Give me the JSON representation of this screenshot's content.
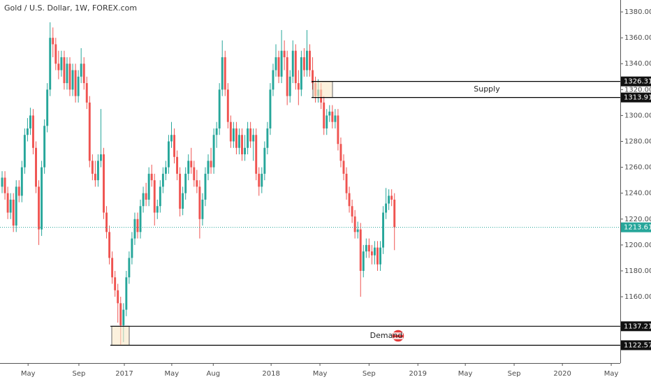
{
  "chart_data": {
    "type": "candlestick",
    "title": "Gold / U.S. Dollar, 1W, FOREX.com",
    "up_color": "#26a69a",
    "down_color": "#ef5350",
    "open": [
      1245,
      1252,
      1240,
      1225,
      1235,
      1215,
      1245,
      1238,
      1260,
      1285,
      1290,
      1300,
      1275,
      1245,
      1212,
      1260,
      1292,
      1320,
      1360,
      1355,
      1340,
      1335,
      1345,
      1325,
      1340,
      1320,
      1335,
      1315,
      1330,
      1340,
      1325,
      1310,
      1265,
      1255,
      1250,
      1265,
      1270,
      1225,
      1210,
      1190,
      1175,
      1165,
      1155,
      1138,
      1150,
      1175,
      1190,
      1205,
      1220,
      1210,
      1230,
      1240,
      1235,
      1255,
      1250,
      1225,
      1230,
      1245,
      1255,
      1260,
      1280,
      1285,
      1268,
      1255,
      1228,
      1240,
      1255,
      1265,
      1260,
      1250,
      1245,
      1220,
      1235,
      1255,
      1265,
      1260,
      1285,
      1290,
      1320,
      1345,
      1320,
      1295,
      1280,
      1290,
      1275,
      1285,
      1270,
      1275,
      1290,
      1280,
      1285,
      1255,
      1245,
      1255,
      1275,
      1290,
      1320,
      1335,
      1345,
      1330,
      1350,
      1345,
      1315,
      1330,
      1350,
      1325,
      1320,
      1345,
      1335,
      1350,
      1335,
      1325,
      1315,
      1320,
      1310,
      1290,
      1300,
      1303,
      1295,
      1300,
      1278,
      1265,
      1255,
      1240,
      1230,
      1222,
      1210,
      1212,
      1180,
      1195,
      1200,
      1195,
      1192,
      1198,
      1185,
      1198,
      1225,
      1232,
      1238,
      1235
    ],
    "high": [
      1257,
      1257,
      1245,
      1240,
      1240,
      1250,
      1250,
      1265,
      1290,
      1298,
      1306,
      1305,
      1280,
      1250,
      1265,
      1297,
      1325,
      1372,
      1368,
      1360,
      1350,
      1350,
      1350,
      1345,
      1345,
      1340,
      1340,
      1335,
      1352,
      1345,
      1330,
      1315,
      1270,
      1265,
      1270,
      1305,
      1275,
      1230,
      1215,
      1195,
      1180,
      1170,
      1160,
      1155,
      1180,
      1195,
      1210,
      1225,
      1225,
      1235,
      1245,
      1248,
      1260,
      1262,
      1255,
      1235,
      1250,
      1260,
      1265,
      1285,
      1295,
      1290,
      1273,
      1260,
      1245,
      1260,
      1270,
      1275,
      1265,
      1258,
      1250,
      1240,
      1260,
      1270,
      1275,
      1290,
      1295,
      1325,
      1358,
      1350,
      1325,
      1300,
      1295,
      1295,
      1290,
      1290,
      1285,
      1295,
      1295,
      1290,
      1290,
      1260,
      1260,
      1280,
      1295,
      1325,
      1340,
      1355,
      1350,
      1366,
      1358,
      1350,
      1335,
      1358,
      1355,
      1335,
      1350,
      1352,
      1366,
      1355,
      1345,
      1330,
      1328,
      1325,
      1315,
      1305,
      1308,
      1308,
      1305,
      1305,
      1283,
      1270,
      1260,
      1245,
      1235,
      1227,
      1218,
      1217,
      1200,
      1205,
      1205,
      1200,
      1203,
      1203,
      1203,
      1230,
      1244,
      1243,
      1243,
      1240
    ],
    "low": [
      1240,
      1235,
      1220,
      1220,
      1210,
      1210,
      1233,
      1233,
      1255,
      1280,
      1285,
      1270,
      1240,
      1200,
      1207,
      1255,
      1287,
      1315,
      1345,
      1335,
      1328,
      1330,
      1320,
      1320,
      1315,
      1315,
      1310,
      1310,
      1325,
      1320,
      1305,
      1260,
      1250,
      1245,
      1245,
      1260,
      1220,
      1205,
      1185,
      1170,
      1160,
      1140,
      1123,
      1125,
      1145,
      1170,
      1185,
      1200,
      1205,
      1205,
      1225,
      1230,
      1230,
      1245,
      1215,
      1220,
      1225,
      1240,
      1250,
      1255,
      1275,
      1263,
      1250,
      1222,
      1223,
      1235,
      1250,
      1255,
      1245,
      1240,
      1205,
      1215,
      1230,
      1250,
      1255,
      1255,
      1275,
      1285,
      1315,
      1315,
      1290,
      1275,
      1275,
      1270,
      1270,
      1265,
      1265,
      1270,
      1275,
      1265,
      1250,
      1238,
      1240,
      1250,
      1270,
      1285,
      1315,
      1330,
      1325,
      1325,
      1335,
      1308,
      1310,
      1325,
      1320,
      1308,
      1315,
      1330,
      1330,
      1330,
      1320,
      1310,
      1310,
      1305,
      1285,
      1285,
      1295,
      1290,
      1290,
      1273,
      1260,
      1250,
      1235,
      1225,
      1217,
      1205,
      1205,
      1160,
      1175,
      1190,
      1190,
      1185,
      1185,
      1180,
      1180,
      1193,
      1220,
      1227,
      1230,
      1196
    ],
    "close": [
      1252,
      1240,
      1225,
      1235,
      1215,
      1245,
      1238,
      1260,
      1285,
      1290,
      1300,
      1275,
      1245,
      1212,
      1260,
      1292,
      1320,
      1360,
      1355,
      1340,
      1335,
      1345,
      1325,
      1340,
      1320,
      1335,
      1315,
      1330,
      1340,
      1325,
      1310,
      1265,
      1255,
      1250,
      1265,
      1270,
      1225,
      1210,
      1190,
      1175,
      1165,
      1155,
      1138,
      1150,
      1175,
      1190,
      1205,
      1220,
      1210,
      1230,
      1240,
      1235,
      1255,
      1250,
      1225,
      1230,
      1245,
      1255,
      1260,
      1280,
      1285,
      1268,
      1255,
      1228,
      1240,
      1255,
      1265,
      1260,
      1250,
      1245,
      1220,
      1235,
      1255,
      1265,
      1260,
      1285,
      1290,
      1320,
      1345,
      1320,
      1295,
      1280,
      1290,
      1275,
      1285,
      1270,
      1275,
      1290,
      1280,
      1285,
      1255,
      1245,
      1255,
      1275,
      1290,
      1320,
      1335,
      1345,
      1330,
      1350,
      1345,
      1315,
      1330,
      1350,
      1325,
      1320,
      1345,
      1335,
      1350,
      1335,
      1325,
      1315,
      1320,
      1310,
      1290,
      1300,
      1303,
      1295,
      1300,
      1278,
      1265,
      1255,
      1240,
      1230,
      1222,
      1210,
      1212,
      1180,
      1195,
      1200,
      1195,
      1192,
      1198,
      1185,
      1198,
      1225,
      1232,
      1238,
      1235,
      1213.61
    ],
    "xlim": [
      -0.75,
      219
    ],
    "xticks": [
      {
        "value": 9.2,
        "label": "May"
      },
      {
        "value": 27.2,
        "label": "Sep"
      },
      {
        "value": 43.3,
        "label": "2017"
      },
      {
        "value": 60.1,
        "label": "May"
      },
      {
        "value": 74.8,
        "label": "Aug"
      },
      {
        "value": 95.3,
        "label": "2018"
      },
      {
        "value": 112.6,
        "label": "May"
      },
      {
        "value": 130,
        "label": "Sep"
      },
      {
        "value": 147.3,
        "label": "2019"
      },
      {
        "value": 164.1,
        "label": "May"
      },
      {
        "value": 181.4,
        "label": "Sep"
      },
      {
        "value": 198.5,
        "label": "2020"
      },
      {
        "value": 215.8,
        "label": "May"
      }
    ],
    "ylim": [
      1108.8,
      1389.2
    ],
    "yticks": [
      {
        "value": 1160,
        "label": "1160.00"
      },
      {
        "value": 1180,
        "label": "1180.00"
      },
      {
        "value": 1200,
        "label": "1200.00"
      },
      {
        "value": 1220,
        "label": "1220.00"
      },
      {
        "value": 1240,
        "label": "1240.00"
      },
      {
        "value": 1260,
        "label": "1260.00"
      },
      {
        "value": 1280,
        "label": "1280.00"
      },
      {
        "value": 1300,
        "label": "1300.00"
      },
      {
        "value": 1320,
        "label": "1320.00"
      },
      {
        "value": 1340,
        "label": "1340.00"
      },
      {
        "value": 1360,
        "label": "1360.00"
      },
      {
        "value": 1380,
        "label": "1380.00"
      }
    ],
    "last_price": 1213.61,
    "zones": [
      {
        "label": "Supply",
        "top": 1326.31,
        "bottom": 1313.91
      },
      {
        "label": "Demand",
        "top": 1137.21,
        "bottom": 1122.57
      }
    ]
  }
}
